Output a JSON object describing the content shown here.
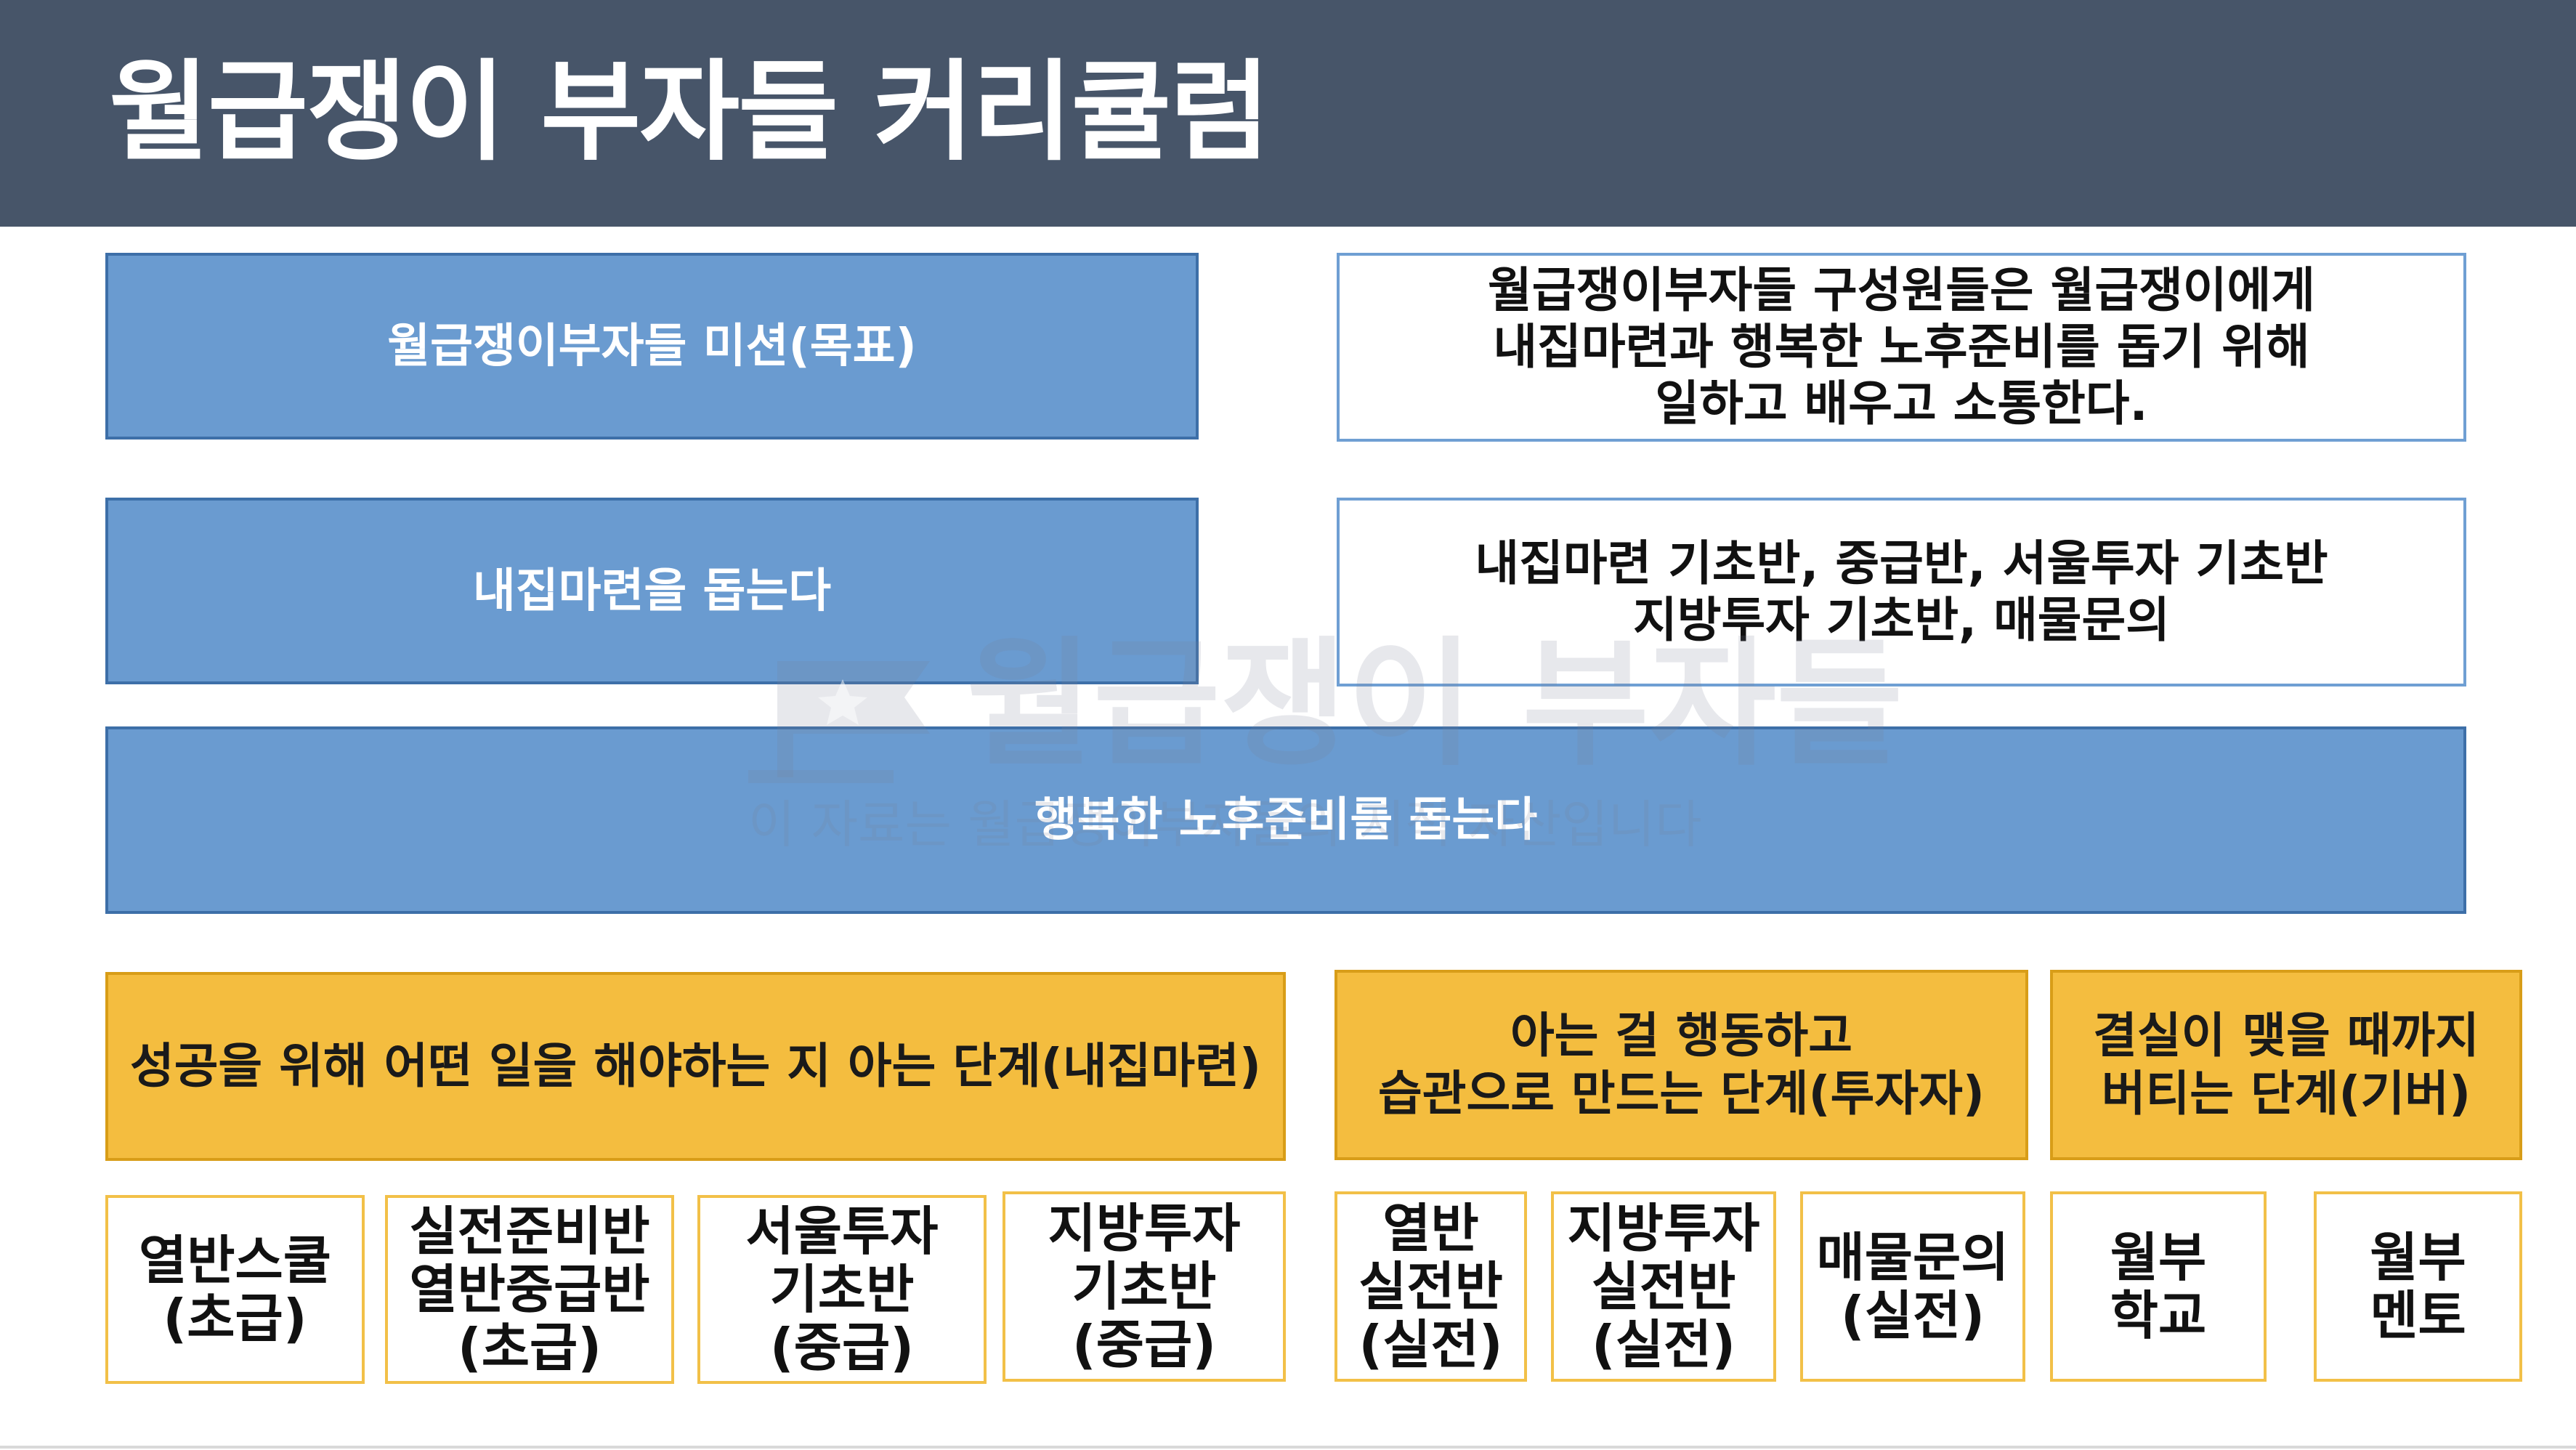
{
  "header": {
    "title": "월급쟁이 부자들 커리큘럼"
  },
  "mission": {
    "label": "월급쟁이부자들 미션(목표)",
    "text": "월급쟁이부자들 구성원들은 월급쟁이에게\n내집마련과 행복한 노후준비를 돕기 위해\n일하고 배우고 소통한다."
  },
  "home": {
    "label": "내집마련을 돕는다",
    "text": "내집마련 기초반, 중급반, 서울투자 기초반\n지방투자 기초반, 매물문의"
  },
  "retirement": {
    "label": "행복한 노후준비를 돕는다"
  },
  "stages": [
    {
      "label": "성공을 위해 어떤 일을 해야하는 지 아는 단계(내집마련)"
    },
    {
      "label": "아는 걸 행동하고\n습관으로 만드는 단계(투자자)"
    },
    {
      "label": "결실이 맺을 때까지\n버티는 단계(기버)"
    }
  ],
  "courses": [
    {
      "label": "열반스쿨\n(초급)"
    },
    {
      "label": "실전준비반\n열반중급반\n(초급)"
    },
    {
      "label": "서울투자\n기초반\n(중급)"
    },
    {
      "label": "지방투자\n기초반\n(중급)"
    },
    {
      "label": "열반\n실전반\n(실전)"
    },
    {
      "label": "지방투자\n실전반\n(실전)"
    },
    {
      "label": "매물문의\n(실전)"
    },
    {
      "label": "월부\n학교"
    },
    {
      "label": "월부\n멘토"
    }
  ],
  "watermark": {
    "brand": "월급쟁이 부자들",
    "note": "이 자료는 월급쟁이부자들의 지적 자산입니다"
  },
  "colors": {
    "header_bg": "#475569",
    "blue_fill": "#6a9bd0",
    "gold_fill": "#f4bd3f",
    "gold_border": "#f2c048"
  }
}
